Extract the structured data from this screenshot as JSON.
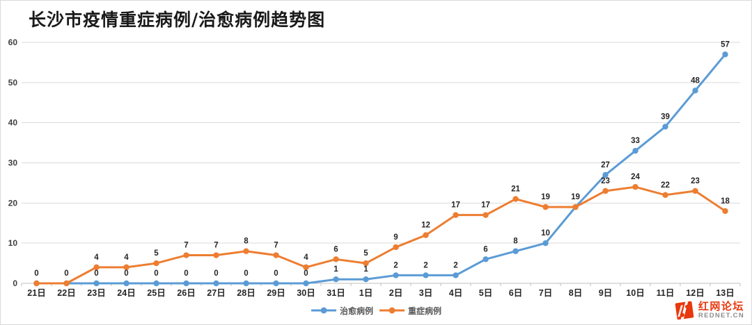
{
  "title": "长沙市疫情重症病例/治愈病例趋势图",
  "logo": {
    "name": "红网论坛",
    "domain": "REDNET.CN",
    "color": "#e8380d"
  },
  "chart_data": {
    "type": "line",
    "title": "长沙市疫情重症病例/治愈病例趋势图",
    "categories": [
      "21日",
      "22日",
      "23日",
      "24日",
      "25日",
      "26日",
      "27日",
      "28日",
      "29日",
      "30日",
      "31日",
      "1日",
      "2日",
      "3日",
      "4日",
      "5日",
      "6日",
      "7日",
      "8日",
      "9日",
      "10日",
      "11日",
      "12日",
      "13日"
    ],
    "series": [
      {
        "key": "cured",
        "name": "治愈病例",
        "color": "#5B9BD5",
        "values": [
          0,
          0,
          0,
          0,
          0,
          0,
          0,
          0,
          0,
          0,
          1,
          1,
          2,
          2,
          2,
          6,
          8,
          10,
          19,
          27,
          33,
          39,
          48,
          57
        ]
      },
      {
        "key": "severe",
        "name": "重症病例",
        "color": "#ED7D31",
        "values": [
          0,
          0,
          4,
          4,
          5,
          7,
          7,
          8,
          7,
          4,
          6,
          5,
          9,
          12,
          17,
          17,
          21,
          19,
          19,
          23,
          24,
          22,
          23,
          18
        ]
      }
    ],
    "xlabel": "",
    "ylabel": "",
    "ylim": [
      0,
      60
    ],
    "yticks": [
      0,
      10,
      20,
      30,
      40,
      50,
      60
    ],
    "grid": true,
    "data_labels": true,
    "legend_position": "bottom",
    "colors": {
      "gridline": "#d9d9d9",
      "axis": "#bfbfbf",
      "tick_label": "#404040",
      "data_label": "#262626"
    }
  }
}
